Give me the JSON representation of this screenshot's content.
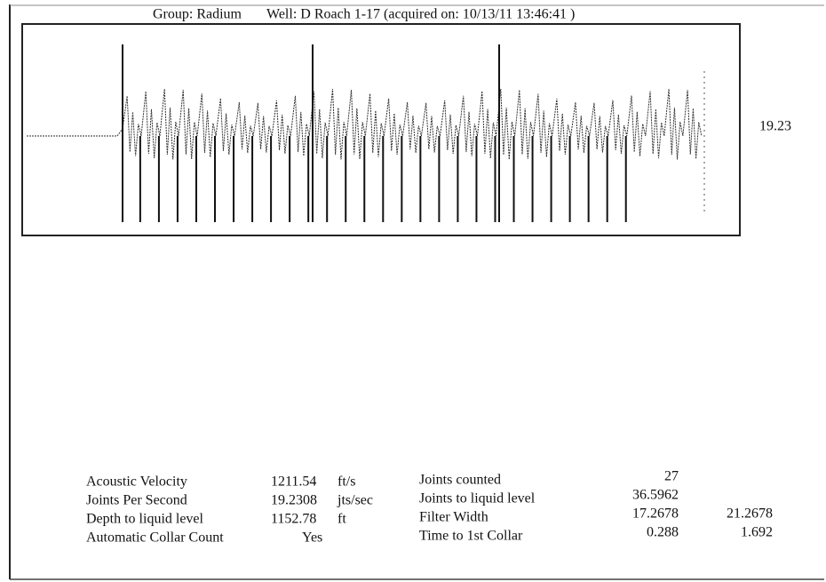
{
  "header": {
    "group": "Group: Radium",
    "well": "Well: D Roach  1-17 (acquired on: 10/13/11 13:46:41 )"
  },
  "side_label": "19.23",
  "left_table": {
    "rows": [
      [
        "Acoustic Velocity",
        "1211.54",
        "ft/s"
      ],
      [
        "Joints Per Second",
        "19.2308",
        "jts/sec"
      ],
      [
        "Depth to liquid level",
        "1152.78",
        "ft"
      ],
      [
        "Automatic Collar Count",
        "Yes"
      ]
    ]
  },
  "right_table": {
    "rows": [
      [
        "Joints counted",
        "27"
      ],
      [
        "Joints to liquid level",
        "36.5962"
      ],
      [
        "Filter Width",
        "17.2678",
        "21.2678"
      ],
      [
        "Time to 1st Collar",
        "0.288",
        "1.692"
      ]
    ]
  }
}
